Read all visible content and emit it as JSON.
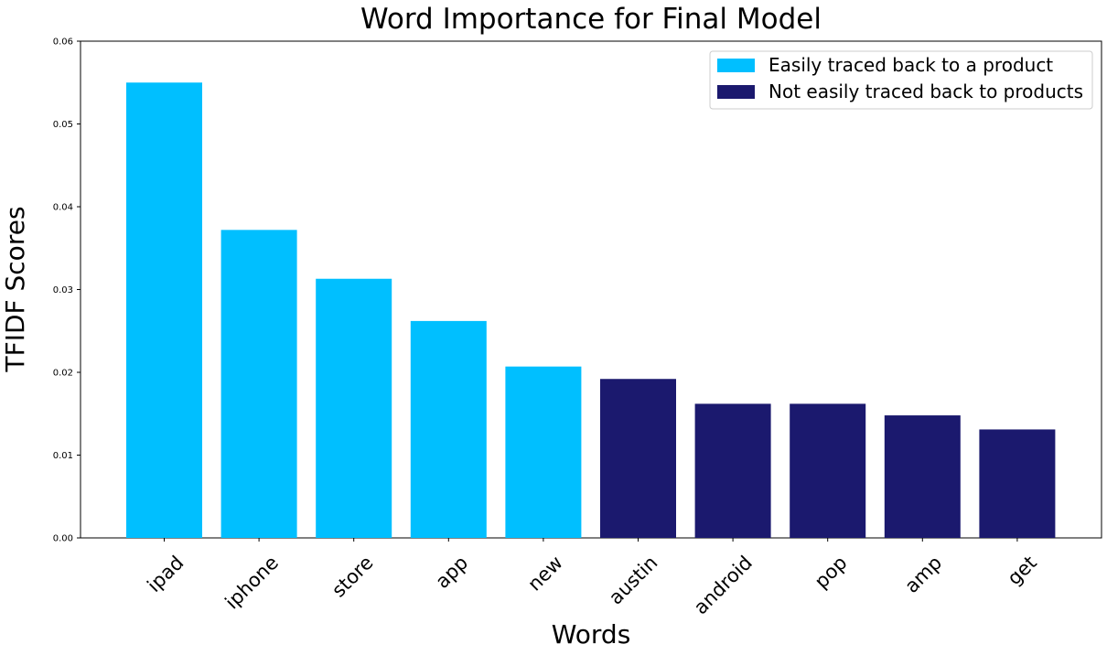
{
  "chart_data": {
    "type": "bar",
    "title": "Word Importance for Final Model",
    "xlabel": "Words",
    "ylabel": "TFIDF Scores",
    "ylim": [
      0,
      0.06
    ],
    "yticks": [
      "0.00",
      "0.01",
      "0.02",
      "0.03",
      "0.04",
      "0.05",
      "0.06"
    ],
    "grid": false,
    "legend_position": "top-right",
    "categories": [
      "ipad",
      "iphone",
      "store",
      "app",
      "new",
      "austin",
      "android",
      "pop",
      "amp",
      "get"
    ],
    "values": [
      0.055,
      0.0372,
      0.0313,
      0.0262,
      0.0207,
      0.0192,
      0.0162,
      0.0162,
      0.0148,
      0.0131
    ],
    "groups": [
      0,
      0,
      0,
      0,
      0,
      1,
      1,
      1,
      1,
      1
    ],
    "legend": [
      {
        "label": "Easily traced back to a product",
        "color": "#00bfff"
      },
      {
        "label": "Not easily traced back to products",
        "color": "#1b196e"
      }
    ]
  }
}
